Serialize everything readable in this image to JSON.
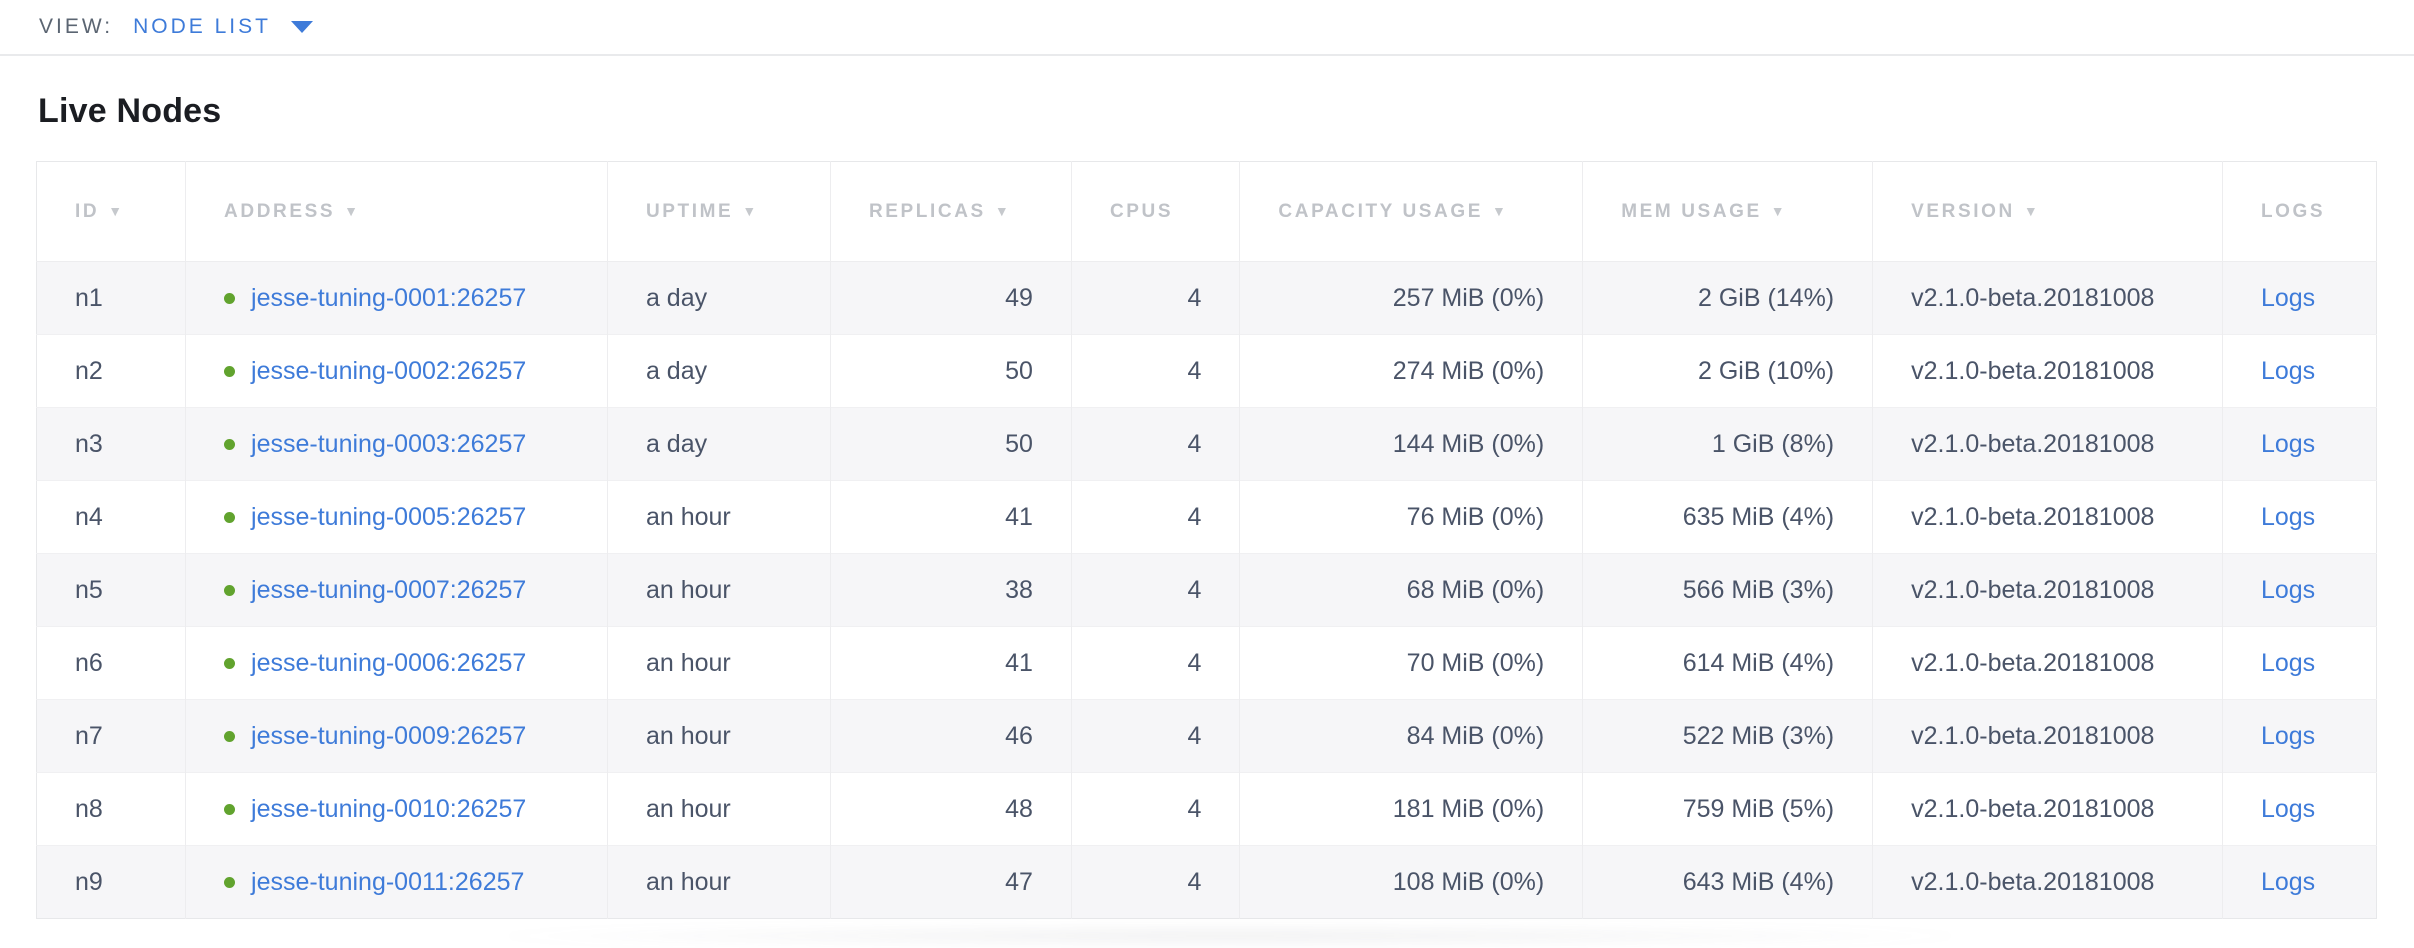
{
  "view_bar": {
    "label": "VIEW:",
    "selected": "NODE LIST"
  },
  "page": {
    "title": "Live Nodes"
  },
  "icons": {
    "sort_desc": "▼",
    "dropdown_caret": "▼",
    "status_dot": "●"
  },
  "colors": {
    "accent_blue": "#3e7bd9",
    "healthy_green": "#61a32e",
    "header_gray": "#c0c3c8",
    "data_text": "#4a5468",
    "stripe_row": "#f6f6f8",
    "border": "#e7e8ea"
  },
  "table": {
    "columns": [
      {
        "key": "id",
        "label": "ID",
        "sortable": true,
        "align": "left",
        "width_pct": 6.37
      },
      {
        "key": "address",
        "label": "ADDRESS",
        "sortable": true,
        "align": "left",
        "width_pct": 18.03
      },
      {
        "key": "uptime",
        "label": "UPTIME",
        "sortable": true,
        "align": "left",
        "width_pct": 9.53
      },
      {
        "key": "replicas",
        "label": "REPLICAS",
        "sortable": true,
        "align": "right",
        "width_pct": 10.3
      },
      {
        "key": "cpus",
        "label": "CPUS",
        "sortable": false,
        "align": "right",
        "width_pct": 7.2
      },
      {
        "key": "capacity",
        "label": "CAPACITY USAGE",
        "sortable": true,
        "align": "right",
        "width_pct": 14.65
      },
      {
        "key": "mem",
        "label": "MEM USAGE",
        "sortable": true,
        "align": "right",
        "width_pct": 12.39
      },
      {
        "key": "version",
        "label": "VERSION",
        "sortable": true,
        "align": "left",
        "width_pct": 14.95
      },
      {
        "key": "logs",
        "label": "LOGS",
        "sortable": false,
        "align": "left",
        "width_pct": 6.58
      }
    ],
    "rows": [
      {
        "id": "n1",
        "status": "healthy",
        "address": "jesse-tuning-0001:26257",
        "uptime": "a day",
        "replicas": "49",
        "cpus": "4",
        "capacity": "257 MiB (0%)",
        "mem": "2 GiB (14%)",
        "version": "v2.1.0-beta.20181008",
        "logs": "Logs"
      },
      {
        "id": "n2",
        "status": "healthy",
        "address": "jesse-tuning-0002:26257",
        "uptime": "a day",
        "replicas": "50",
        "cpus": "4",
        "capacity": "274 MiB (0%)",
        "mem": "2 GiB (10%)",
        "version": "v2.1.0-beta.20181008",
        "logs": "Logs"
      },
      {
        "id": "n3",
        "status": "healthy",
        "address": "jesse-tuning-0003:26257",
        "uptime": "a day",
        "replicas": "50",
        "cpus": "4",
        "capacity": "144 MiB (0%)",
        "mem": "1 GiB (8%)",
        "version": "v2.1.0-beta.20181008",
        "logs": "Logs"
      },
      {
        "id": "n4",
        "status": "healthy",
        "address": "jesse-tuning-0005:26257",
        "uptime": "an hour",
        "replicas": "41",
        "cpus": "4",
        "capacity": "76 MiB (0%)",
        "mem": "635 MiB (4%)",
        "version": "v2.1.0-beta.20181008",
        "logs": "Logs"
      },
      {
        "id": "n5",
        "status": "healthy",
        "address": "jesse-tuning-0007:26257",
        "uptime": "an hour",
        "replicas": "38",
        "cpus": "4",
        "capacity": "68 MiB (0%)",
        "mem": "566 MiB (3%)",
        "version": "v2.1.0-beta.20181008",
        "logs": "Logs"
      },
      {
        "id": "n6",
        "status": "healthy",
        "address": "jesse-tuning-0006:26257",
        "uptime": "an hour",
        "replicas": "41",
        "cpus": "4",
        "capacity": "70 MiB (0%)",
        "mem": "614 MiB (4%)",
        "version": "v2.1.0-beta.20181008",
        "logs": "Logs"
      },
      {
        "id": "n7",
        "status": "healthy",
        "address": "jesse-tuning-0009:26257",
        "uptime": "an hour",
        "replicas": "46",
        "cpus": "4",
        "capacity": "84 MiB (0%)",
        "mem": "522 MiB (3%)",
        "version": "v2.1.0-beta.20181008",
        "logs": "Logs"
      },
      {
        "id": "n8",
        "status": "healthy",
        "address": "jesse-tuning-0010:26257",
        "uptime": "an hour",
        "replicas": "48",
        "cpus": "4",
        "capacity": "181 MiB (0%)",
        "mem": "759 MiB (5%)",
        "version": "v2.1.0-beta.20181008",
        "logs": "Logs"
      },
      {
        "id": "n9",
        "status": "healthy",
        "address": "jesse-tuning-0011:26257",
        "uptime": "an hour",
        "replicas": "47",
        "cpus": "4",
        "capacity": "108 MiB (0%)",
        "mem": "643 MiB (4%)",
        "version": "v2.1.0-beta.20181008",
        "logs": "Logs"
      }
    ]
  }
}
